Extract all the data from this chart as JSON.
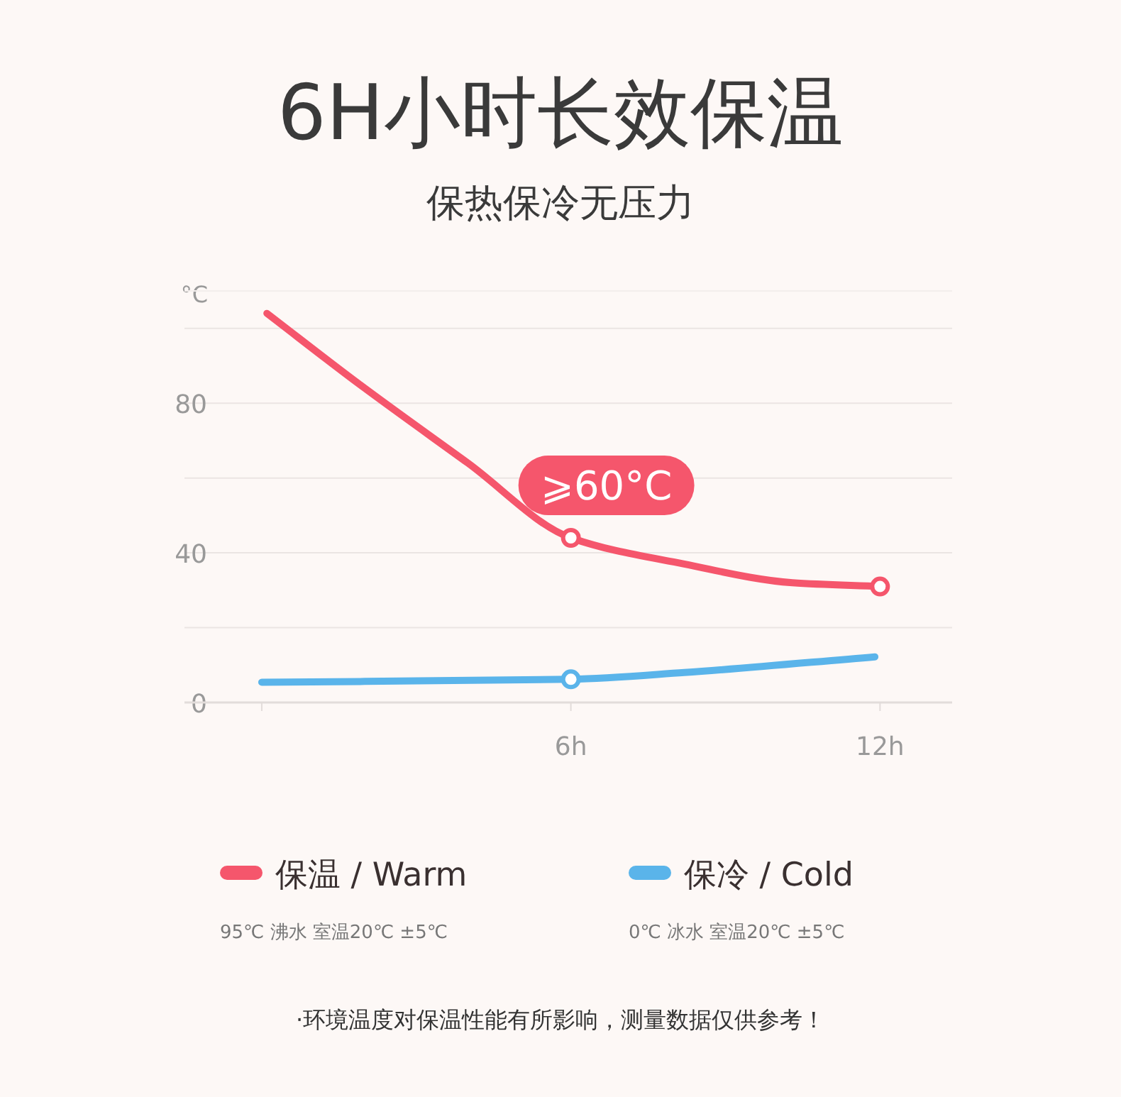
{
  "chart_data": {
    "type": "line",
    "title": "6H小时长效保温",
    "subtitle": "保热保冷无压力",
    "ylabel": "°C",
    "xlim": [
      -1.5,
      13.4
    ],
    "ylim": [
      0,
      110
    ],
    "xticks": [
      {
        "value": 0,
        "label": null
      },
      {
        "value": 6,
        "label": "6h"
      },
      {
        "value": 12,
        "label": "12h"
      }
    ],
    "yticks": [
      0,
      {
        "value": 20,
        "label": null
      },
      40,
      {
        "value": 60,
        "label": null
      },
      80,
      {
        "value": 100,
        "label": null
      }
    ],
    "grid": "y",
    "legend": "bottom",
    "series": [
      {
        "name": "保温 / Warm",
        "color": "#f5566c",
        "x": [
          0.1,
          1.9,
          4.0,
          6,
          8.2,
          10.3,
          12
        ],
        "values": [
          104,
          85,
          64,
          44,
          37,
          32,
          31
        ]
      },
      {
        "name": "保冷 / Cold",
        "color": "#5ab4ea",
        "x": [
          0,
          6,
          8.2,
          11.9
        ],
        "values": [
          5.4,
          6.2,
          8,
          12.2
        ]
      },
      {
        "type": "scatter",
        "marker": "circle",
        "color": "#f5566c",
        "x": [
          6,
          12
        ],
        "values": [
          44,
          31
        ]
      },
      {
        "type": "scatter",
        "marker": "circle",
        "color": "#5ab4ea",
        "x": [
          6
        ],
        "values": [
          6.2
        ]
      }
    ],
    "annotations": [
      {
        "text": "⩾60°C",
        "x": 6,
        "y": 44
      },
      "95℃ 沸水 室温20℃ ±5℃",
      "0℃ 冰水 室温20℃ ±5℃",
      "·环境温度对保温性能有所影响，测量数据仅供参考！"
    ]
  }
}
